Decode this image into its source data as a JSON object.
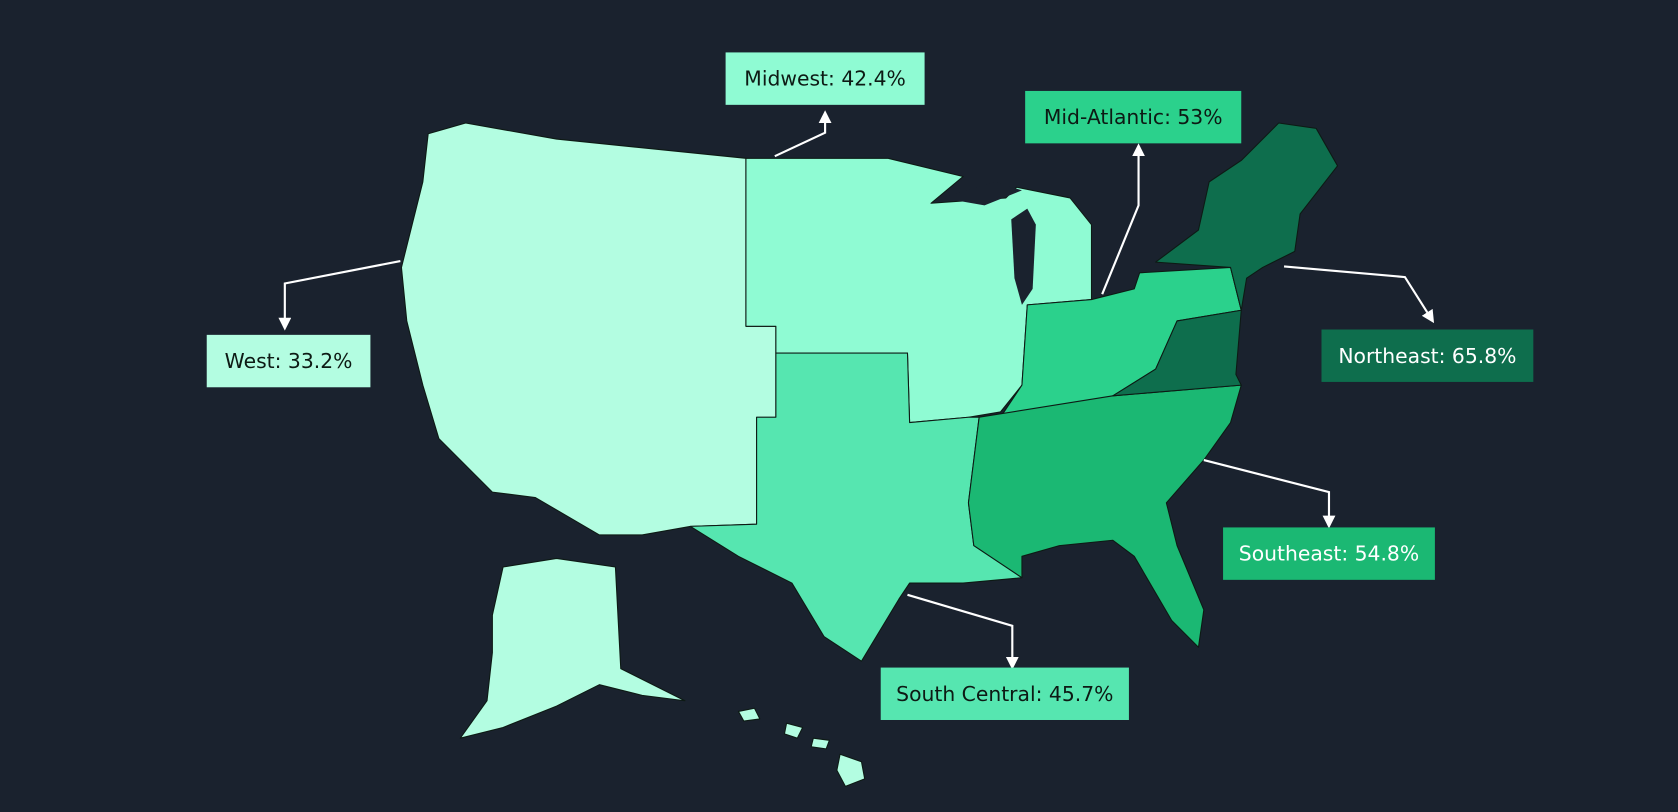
{
  "regions": [
    {
      "label": "West: 33.2%",
      "color": "#b3fde1",
      "text_color": "#0d1a14"
    },
    {
      "label": "Midwest: 42.4%",
      "color": "#8ffbd3",
      "text_color": "#0d1a14"
    },
    {
      "label": "South Central: 45.7%",
      "color": "#56e6b0",
      "text_color": "#0d1a14"
    },
    {
      "label": "Mid-Atlantic: 53%",
      "color": "#2bd18c",
      "text_color": "#0d1a14"
    },
    {
      "label": "Southeast: 54.8%",
      "color": "#1bb873",
      "text_color": "#ffffff"
    },
    {
      "label": "Northeast: 65.8%",
      "color": "#0e6e4d",
      "text_color": "#ffffff"
    }
  ]
}
